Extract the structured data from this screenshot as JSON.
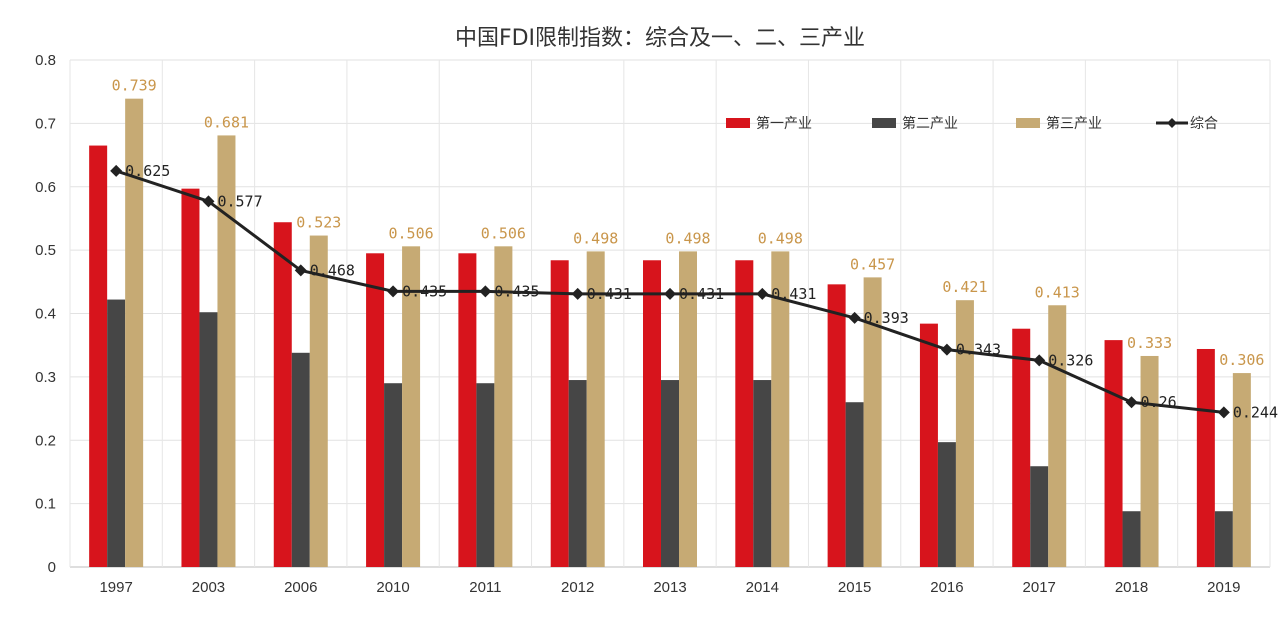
{
  "chart_data": {
    "type": "bar",
    "title": "中国FDI限制指数：综合及一、二、三产业",
    "xlabel": "",
    "ylabel": "",
    "ylim": [
      0,
      0.8
    ],
    "yticks": [
      "0",
      "0.1",
      "0.2",
      "0.3",
      "0.4",
      "0.5",
      "0.6",
      "0.7",
      "0.8"
    ],
    "grid": true,
    "legend_position": "top-right",
    "categories": [
      "1997",
      "2003",
      "2006",
      "2010",
      "2011",
      "2012",
      "2013",
      "2014",
      "2015",
      "2016",
      "2017",
      "2018",
      "2019"
    ],
    "series": [
      {
        "name": "第一产业",
        "type": "bar",
        "color": "#d7141c",
        "values": [
          0.665,
          0.597,
          0.544,
          0.495,
          0.495,
          0.484,
          0.484,
          0.484,
          0.446,
          0.384,
          0.376,
          0.358,
          0.344
        ]
      },
      {
        "name": "第二产业",
        "type": "bar",
        "color": "#464646",
        "values": [
          0.422,
          0.402,
          0.338,
          0.29,
          0.29,
          0.295,
          0.295,
          0.295,
          0.26,
          0.197,
          0.159,
          0.088,
          0.088
        ]
      },
      {
        "name": "第三产业",
        "type": "bar",
        "color": "#c6aa74",
        "values": [
          0.739,
          0.681,
          0.523,
          0.506,
          0.506,
          0.498,
          0.498,
          0.498,
          0.457,
          0.421,
          0.413,
          0.333,
          0.306
        ],
        "labels": [
          "0.739",
          "0.681",
          "0.523",
          "0.506",
          "0.506",
          "0.498",
          "0.498",
          "0.498",
          "0.457",
          "0.421",
          "0.413",
          "0.333",
          "0.306"
        ],
        "label_color": "#c9964b"
      },
      {
        "name": "综合",
        "type": "line",
        "color": "#222222",
        "values": [
          0.625,
          0.577,
          0.468,
          0.435,
          0.435,
          0.431,
          0.431,
          0.431,
          0.393,
          0.343,
          0.326,
          0.26,
          0.244
        ],
        "labels": [
          "0.625",
          "0.577",
          "0.468",
          "0.435",
          "0.435",
          "0.431",
          "0.431",
          "0.431",
          "0.393",
          "0.343",
          "0.326",
          "0.26",
          "0.244"
        ],
        "label_color": "#222222"
      }
    ]
  }
}
